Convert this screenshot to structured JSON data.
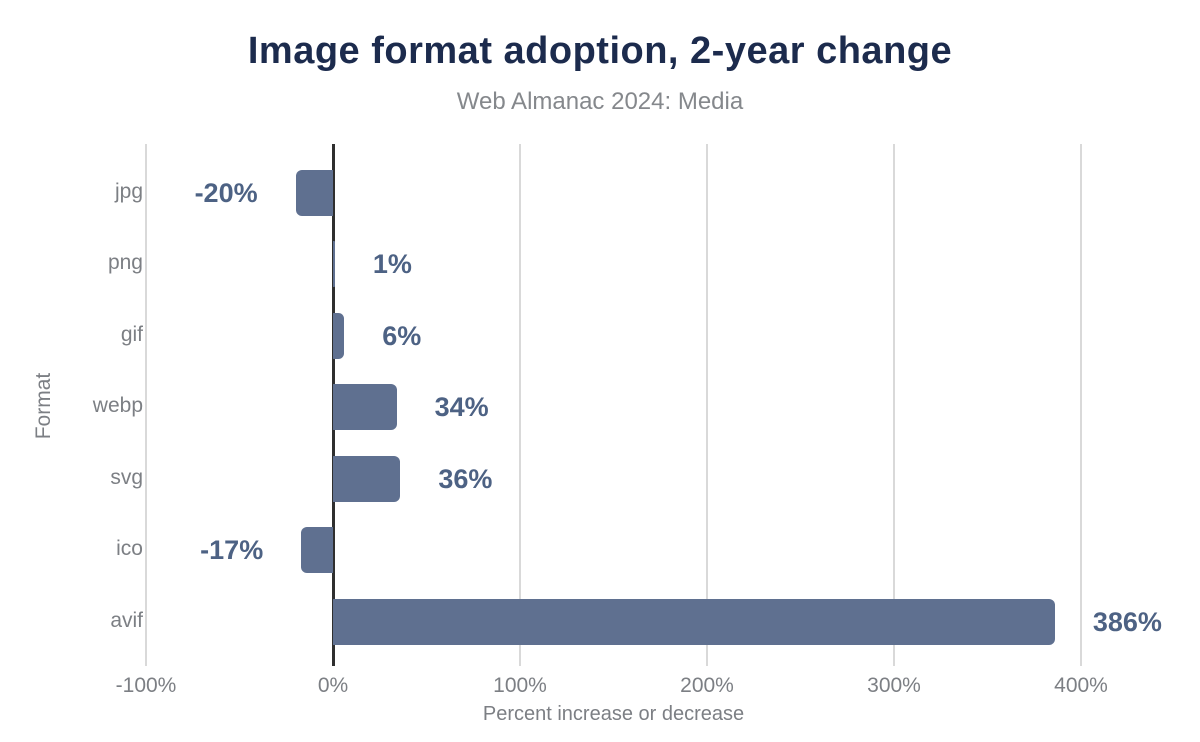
{
  "chart_data": {
    "type": "bar",
    "orientation": "horizontal",
    "title": "Image format adoption, 2-year change",
    "subtitle": "Web Almanac 2024: Media",
    "xlabel": "Percent increase or decrease",
    "ylabel": "Format",
    "categories": [
      "jpg",
      "png",
      "gif",
      "webp",
      "svg",
      "ico",
      "avif"
    ],
    "values": [
      -20,
      1,
      6,
      34,
      36,
      -17,
      386
    ],
    "value_labels": [
      "-20%",
      "1%",
      "6%",
      "34%",
      "36%",
      "-17%",
      "386%"
    ],
    "xlim": [
      -100,
      500
    ],
    "xticks": [
      -100,
      0,
      100,
      200,
      300,
      400
    ],
    "xtick_labels": [
      "-100%",
      "0%",
      "100%",
      "200%",
      "300%",
      "400%"
    ],
    "grid": true,
    "legend": false,
    "colors": {
      "bar": "#5f7090",
      "value_label": "#4d6284",
      "title": "#1c2b4d",
      "subtitle": "#85888c",
      "axis_text": "#7c7f84",
      "gridline": "#d9d9d9",
      "zero_line": "#2f2f2f",
      "background": "#ffffff"
    }
  }
}
